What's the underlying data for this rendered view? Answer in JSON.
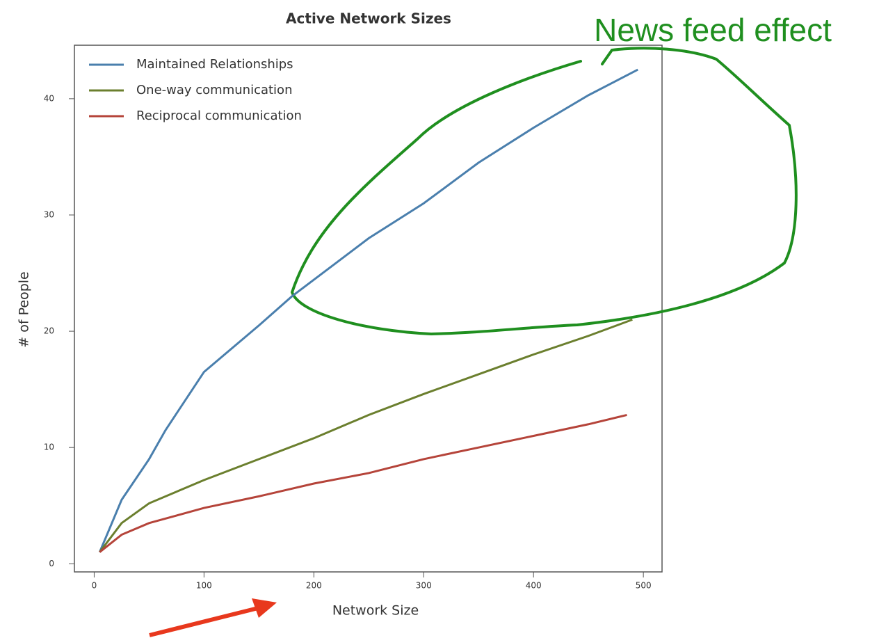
{
  "chart_data": {
    "type": "line",
    "title": "Active Network Sizes",
    "x_label": "Network Size",
    "y_label": "# of People",
    "annotation": "News feed effect",
    "xlim": [
      -18,
      517
    ],
    "ylim": [
      -0.7,
      44.6
    ],
    "xticks": [
      0,
      100,
      200,
      300,
      400,
      500
    ],
    "yticks": [
      0,
      10,
      20,
      30,
      40
    ],
    "legend": "upper left",
    "series": [
      {
        "name": "Maintained Relationships",
        "color": "#4a7fad",
        "x": [
          5,
          25,
          50,
          65,
          100,
          150,
          180,
          250,
          300,
          350,
          400,
          450,
          495
        ],
        "values": [
          1,
          5.5,
          9,
          11.5,
          16.5,
          20.5,
          23,
          28,
          31,
          34.5,
          37.5,
          40.3,
          42.5
        ]
      },
      {
        "name": "One-way communication",
        "color": "#6b7f2e",
        "x": [
          5,
          25,
          50,
          100,
          150,
          200,
          250,
          300,
          350,
          400,
          450,
          490
        ],
        "values": [
          1,
          3.5,
          5.2,
          7.2,
          9,
          10.8,
          12.8,
          14.6,
          16.3,
          18,
          19.6,
          21
        ]
      },
      {
        "name": "Reciprocal communication",
        "color": "#b5443a",
        "x": [
          5,
          25,
          50,
          100,
          150,
          200,
          250,
          300,
          350,
          400,
          450,
          485
        ],
        "values": [
          1,
          2.5,
          3.5,
          4.8,
          5.8,
          6.9,
          7.8,
          9,
          10,
          11,
          12,
          12.8
        ]
      }
    ]
  }
}
